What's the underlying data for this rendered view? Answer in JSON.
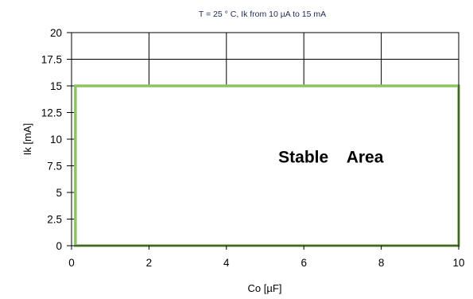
{
  "chart_data": {
    "type": "area",
    "title": "T = 25 ° C,   Ik  from 10  µA to 15 mA",
    "xlabel": "Co [µF]",
    "ylabel": "Ik [mA]",
    "xlim": [
      0,
      10
    ],
    "ylim": [
      0,
      20
    ],
    "x_ticks": [
      "0",
      "2",
      "4",
      "6",
      "8",
      "10"
    ],
    "y_ticks": [
      "0",
      "2.5",
      "5",
      "7.5",
      "10",
      "12.5",
      "15",
      "17.5",
      "20"
    ],
    "grid": true,
    "region": {
      "label": "Stable    Area",
      "x": [
        0.1,
        10
      ],
      "y": [
        0.01,
        15
      ],
      "color": "#8dc463"
    },
    "legend": "none"
  }
}
